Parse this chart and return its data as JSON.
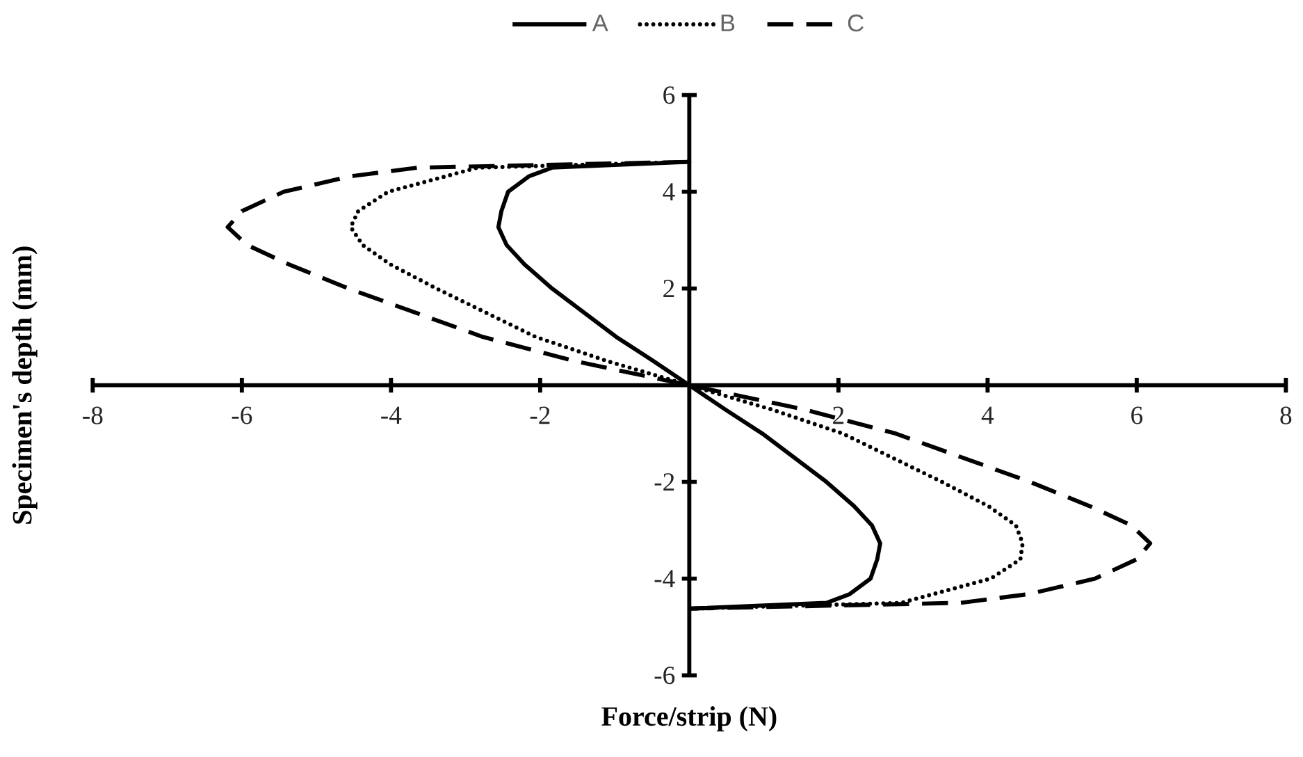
{
  "chart_data": {
    "type": "line",
    "xlabel": "Force/strip (N)",
    "ylabel": "Specimen's depth (mm)",
    "xlim": [
      -8,
      8
    ],
    "ylim": [
      -6,
      6
    ],
    "xticks": [
      -8,
      -6,
      -4,
      -2,
      2,
      4,
      6,
      8
    ],
    "yticks": [
      -6,
      -4,
      -2,
      2,
      4,
      6
    ],
    "grid": false,
    "legend": "top",
    "marker": "none",
    "series": [
      {
        "name": "A",
        "color": "#000000",
        "line_style": "solid",
        "x": [
          0,
          -1.84,
          -2.15,
          -2.43,
          -2.52,
          -2.56,
          -2.45,
          -2.21,
          -1.84,
          -0.98,
          -0.48,
          0,
          0.48,
          0.98,
          1.84,
          2.21,
          2.45,
          2.56,
          2.52,
          2.43,
          2.15,
          1.84,
          0
        ],
        "values": [
          4.62,
          4.5,
          4.32,
          4.0,
          3.6,
          3.27,
          2.9,
          2.5,
          2,
          1,
          0.5,
          0,
          -0.5,
          -1,
          -2,
          -2.5,
          -2.9,
          -3.27,
          -3.6,
          -4.0,
          -4.32,
          -4.5,
          -4.62
        ]
      },
      {
        "name": "B",
        "color": "#000000",
        "line_style": "dotted",
        "x": [
          0,
          -2.84,
          -3.27,
          -4.04,
          -4.44,
          -4.54,
          -4.38,
          -4.01,
          -3.39,
          -2.06,
          -1.1,
          0,
          1.1,
          2.06,
          3.39,
          4.01,
          4.38,
          4.47,
          4.44,
          4.04,
          3.27,
          2.84,
          0
        ],
        "values": [
          4.62,
          4.5,
          4.32,
          4.0,
          3.6,
          3.27,
          2.9,
          2.5,
          2,
          1,
          0.5,
          0,
          -0.5,
          -1,
          -2,
          -2.5,
          -2.9,
          -3.27,
          -3.6,
          -4.0,
          -4.32,
          -4.5,
          -4.62
        ]
      },
      {
        "name": "C",
        "color": "#000000",
        "line_style": "dashed",
        "x": [
          0,
          -3.64,
          -4.55,
          -5.44,
          -6.0,
          -6.19,
          -5.93,
          -5.37,
          -4.57,
          -2.77,
          -1.54,
          0,
          1.54,
          2.77,
          4.57,
          5.37,
          5.93,
          6.18,
          6.0,
          5.44,
          4.55,
          3.64,
          0
        ],
        "values": [
          4.62,
          4.5,
          4.32,
          4.0,
          3.6,
          3.27,
          2.9,
          2.5,
          2,
          1,
          0.5,
          0,
          -0.5,
          -1,
          -2,
          -2.5,
          -2.9,
          -3.27,
          -3.6,
          -4.0,
          -4.32,
          -4.5,
          -4.62
        ]
      }
    ]
  }
}
